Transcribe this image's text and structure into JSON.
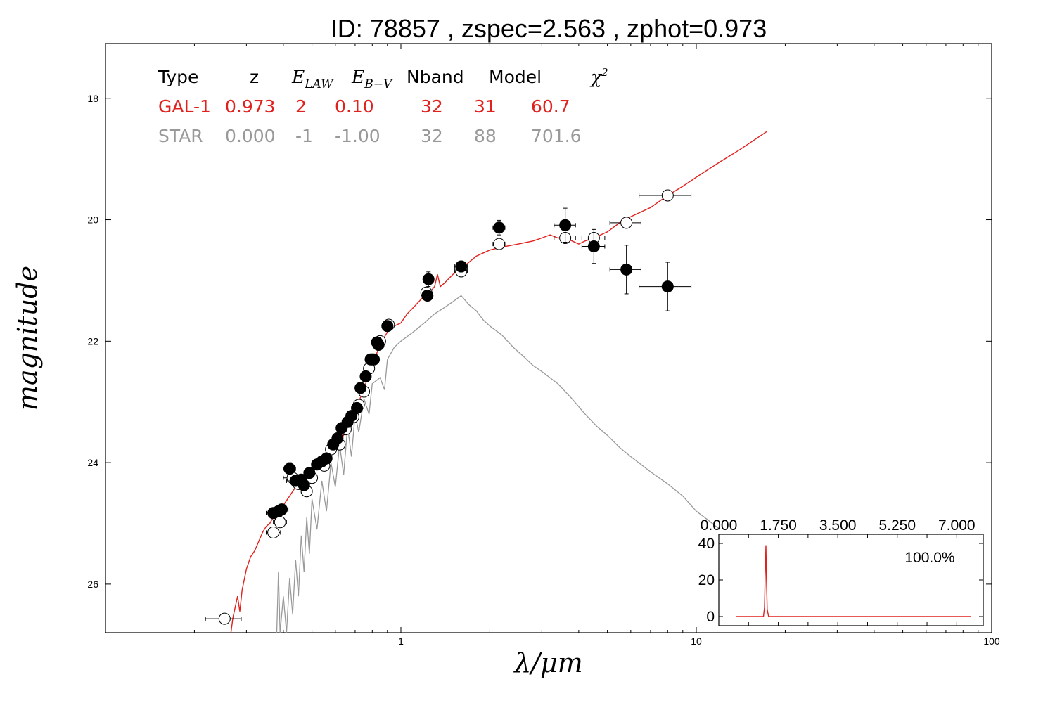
{
  "chart_data": {
    "type": "scatter",
    "title": "ID:  78857 , zspec=2.563 , zphot=0.973",
    "xlabel": "λ/μm",
    "ylabel": "magnitude",
    "xscale": "log",
    "xlim": [
      0.1,
      100
    ],
    "ylim": [
      26.8,
      17.1
    ],
    "x_ticks": [
      {
        "v": 1,
        "label": "1"
      },
      {
        "v": 10,
        "label": "10"
      },
      {
        "v": 100,
        "label": "100"
      }
    ],
    "y_ticks": [
      {
        "v": 18,
        "label": "18"
      },
      {
        "v": 20,
        "label": "20"
      },
      {
        "v": 22,
        "label": "22"
      },
      {
        "v": 24,
        "label": "24"
      },
      {
        "v": 26,
        "label": "26"
      }
    ],
    "grid": false,
    "legend_table": {
      "headers": [
        "Type",
        "z",
        "E_LAW",
        "E_B−V",
        "Nband",
        "Model",
        "χ²"
      ],
      "rows": [
        {
          "cells": [
            "GAL-1",
            "0.973",
            "2",
            "0.10",
            "32",
            "31",
            "60.7"
          ],
          "color": "#e0211d"
        },
        {
          "cells": [
            "STAR",
            "0.000",
            "-1",
            "-1.00",
            "32",
            "88",
            "701.6"
          ],
          "color": "#999999"
        }
      ]
    },
    "series": [
      {
        "name": "GAL-1",
        "kind": "line",
        "color": "#e0211d",
        "points": [
          [
            0.265,
            26.85
          ],
          [
            0.27,
            26.55
          ],
          [
            0.28,
            26.2
          ],
          [
            0.285,
            26.45
          ],
          [
            0.29,
            26.1
          ],
          [
            0.3,
            25.75
          ],
          [
            0.31,
            25.55
          ],
          [
            0.32,
            25.45
          ],
          [
            0.33,
            25.3
          ],
          [
            0.34,
            25.15
          ],
          [
            0.35,
            25.05
          ],
          [
            0.36,
            25.0
          ],
          [
            0.37,
            24.9
          ],
          [
            0.38,
            24.85
          ],
          [
            0.39,
            24.8
          ],
          [
            0.4,
            24.7
          ],
          [
            0.42,
            24.55
          ],
          [
            0.44,
            24.4
          ],
          [
            0.46,
            24.3
          ],
          [
            0.48,
            24.2
          ],
          [
            0.5,
            24.1
          ],
          [
            0.53,
            24.0
          ],
          [
            0.56,
            23.9
          ],
          [
            0.6,
            23.75
          ],
          [
            0.64,
            23.55
          ],
          [
            0.68,
            23.3
          ],
          [
            0.72,
            23.0
          ],
          [
            0.76,
            22.7
          ],
          [
            0.8,
            22.4
          ],
          [
            0.85,
            22.05
          ],
          [
            0.9,
            21.85
          ],
          [
            0.95,
            21.75
          ],
          [
            1.0,
            21.7
          ],
          [
            1.05,
            21.55
          ],
          [
            1.1,
            21.45
          ],
          [
            1.15,
            21.35
          ],
          [
            1.2,
            21.25
          ],
          [
            1.25,
            21.2
          ],
          [
            1.3,
            21.1
          ],
          [
            1.33,
            20.9
          ],
          [
            1.36,
            21.1
          ],
          [
            1.4,
            21.05
          ],
          [
            1.5,
            20.9
          ],
          [
            1.6,
            20.8
          ],
          [
            1.7,
            20.7
          ],
          [
            1.8,
            20.6
          ],
          [
            2.0,
            20.5
          ],
          [
            2.2,
            20.45
          ],
          [
            2.5,
            20.4
          ],
          [
            2.8,
            20.35
          ],
          [
            3.0,
            20.3
          ],
          [
            3.2,
            20.25
          ],
          [
            3.4,
            20.3
          ],
          [
            3.6,
            20.3
          ],
          [
            3.8,
            20.35
          ],
          [
            4.0,
            20.4
          ],
          [
            4.2,
            20.35
          ],
          [
            4.5,
            20.3
          ],
          [
            5.0,
            20.2
          ],
          [
            5.5,
            20.05
          ],
          [
            6.0,
            19.95
          ],
          [
            7.0,
            19.8
          ],
          [
            8.0,
            19.6
          ],
          [
            9.0,
            19.45
          ],
          [
            10.0,
            19.3
          ],
          [
            12.0,
            19.05
          ],
          [
            14.0,
            18.85
          ],
          [
            17.3,
            18.55
          ]
        ]
      },
      {
        "name": "STAR",
        "kind": "line",
        "color": "#999999",
        "points": [
          [
            0.38,
            26.8
          ],
          [
            0.385,
            25.8
          ],
          [
            0.39,
            26.8
          ],
          [
            0.4,
            26.2
          ],
          [
            0.41,
            26.8
          ],
          [
            0.42,
            25.9
          ],
          [
            0.43,
            26.5
          ],
          [
            0.44,
            25.6
          ],
          [
            0.45,
            26.2
          ],
          [
            0.46,
            25.2
          ],
          [
            0.47,
            25.8
          ],
          [
            0.48,
            24.9
          ],
          [
            0.49,
            25.5
          ],
          [
            0.5,
            24.6
          ],
          [
            0.52,
            25.1
          ],
          [
            0.54,
            24.3
          ],
          [
            0.56,
            24.8
          ],
          [
            0.58,
            24.0
          ],
          [
            0.6,
            24.4
          ],
          [
            0.62,
            23.7
          ],
          [
            0.64,
            24.2
          ],
          [
            0.66,
            23.4
          ],
          [
            0.68,
            23.9
          ],
          [
            0.7,
            23.2
          ],
          [
            0.72,
            23.5
          ],
          [
            0.75,
            22.95
          ],
          [
            0.78,
            23.2
          ],
          [
            0.8,
            22.7
          ],
          [
            0.85,
            22.6
          ],
          [
            0.88,
            22.8
          ],
          [
            0.9,
            22.3
          ],
          [
            0.95,
            22.1
          ],
          [
            1.0,
            22.0
          ],
          [
            1.1,
            21.85
          ],
          [
            1.2,
            21.7
          ],
          [
            1.3,
            21.55
          ],
          [
            1.4,
            21.45
          ],
          [
            1.5,
            21.35
          ],
          [
            1.6,
            21.25
          ],
          [
            1.7,
            21.4
          ],
          [
            1.8,
            21.5
          ],
          [
            1.9,
            21.65
          ],
          [
            2.0,
            21.75
          ],
          [
            2.2,
            21.9
          ],
          [
            2.4,
            22.1
          ],
          [
            2.6,
            22.25
          ],
          [
            2.8,
            22.4
          ],
          [
            3.0,
            22.5
          ],
          [
            3.4,
            22.7
          ],
          [
            3.8,
            22.95
          ],
          [
            4.2,
            23.2
          ],
          [
            4.6,
            23.4
          ],
          [
            5.0,
            23.55
          ],
          [
            5.5,
            23.75
          ],
          [
            6.0,
            23.9
          ],
          [
            7.0,
            24.15
          ],
          [
            8.0,
            24.35
          ],
          [
            9.0,
            24.55
          ],
          [
            10.0,
            24.8
          ],
          [
            11.0,
            24.95
          ],
          [
            12.0,
            25.1
          ]
        ]
      },
      {
        "name": "observed",
        "kind": "points",
        "color": "#000000",
        "points": [
          {
            "x": 0.37,
            "y": 24.83,
            "xerr": 0.02,
            "yerr": 0.08
          },
          {
            "x": 0.385,
            "y": 24.8,
            "xerr": 0.02,
            "yerr": 0.08
          },
          {
            "x": 0.395,
            "y": 24.77,
            "xerr": 0.02,
            "yerr": 0.08
          },
          {
            "x": 0.42,
            "y": 24.1,
            "xerr": 0.02,
            "yerr": 0.1
          },
          {
            "x": 0.44,
            "y": 24.3,
            "xerr": 0.03,
            "yerr": 0.08
          },
          {
            "x": 0.46,
            "y": 24.28,
            "xerr": 0.02,
            "yerr": 0.08
          },
          {
            "x": 0.47,
            "y": 24.37,
            "xerr": 0.02,
            "yerr": 0.08
          },
          {
            "x": 0.49,
            "y": 24.17,
            "xerr": 0.02,
            "yerr": 0.07
          },
          {
            "x": 0.52,
            "y": 24.03,
            "xerr": 0.02,
            "yerr": 0.07
          },
          {
            "x": 0.54,
            "y": 23.98,
            "xerr": 0.02,
            "yerr": 0.07
          },
          {
            "x": 0.56,
            "y": 23.93,
            "xerr": 0.02,
            "yerr": 0.07
          },
          {
            "x": 0.59,
            "y": 23.7,
            "xerr": 0.02,
            "yerr": 0.06
          },
          {
            "x": 0.61,
            "y": 23.6,
            "xerr": 0.02,
            "yerr": 0.06
          },
          {
            "x": 0.63,
            "y": 23.43,
            "xerr": 0.02,
            "yerr": 0.06
          },
          {
            "x": 0.66,
            "y": 23.33,
            "xerr": 0.02,
            "yerr": 0.06
          },
          {
            "x": 0.68,
            "y": 23.23,
            "xerr": 0.02,
            "yerr": 0.06
          },
          {
            "x": 0.71,
            "y": 23.1,
            "xerr": 0.02,
            "yerr": 0.06
          },
          {
            "x": 0.73,
            "y": 22.77,
            "xerr": 0.02,
            "yerr": 0.06
          },
          {
            "x": 0.76,
            "y": 22.58,
            "xerr": 0.02,
            "yerr": 0.06
          },
          {
            "x": 0.79,
            "y": 22.3,
            "xerr": 0.02,
            "yerr": 0.06
          },
          {
            "x": 0.81,
            "y": 22.3,
            "xerr": 0.02,
            "yerr": 0.06
          },
          {
            "x": 0.83,
            "y": 22.02,
            "xerr": 0.02,
            "yerr": 0.06
          },
          {
            "x": 0.84,
            "y": 22.06,
            "xerr": 0.02,
            "yerr": 0.06
          },
          {
            "x": 0.9,
            "y": 21.75,
            "xerr": 0.03,
            "yerr": 0.06
          },
          {
            "x": 1.23,
            "y": 21.25,
            "xerr": 0.04,
            "yerr": 0.08
          },
          {
            "x": 1.24,
            "y": 20.98,
            "xerr": 0.04,
            "yerr": 0.12
          },
          {
            "x": 1.6,
            "y": 20.77,
            "xerr": 0.08,
            "yerr": 0.07
          },
          {
            "x": 2.15,
            "y": 20.13,
            "xerr": 0.1,
            "yerr": 0.12
          },
          {
            "x": 3.6,
            "y": 20.09,
            "xerr": 0.3,
            "yerr": 0.28
          },
          {
            "x": 4.5,
            "y": 20.44,
            "xerr": 0.4,
            "yerr": 0.28
          },
          {
            "x": 5.8,
            "y": 20.82,
            "xerr": 0.7,
            "yerr": 0.4
          },
          {
            "x": 8.0,
            "y": 21.1,
            "xerr": 1.6,
            "yerr": 0.4
          }
        ]
      },
      {
        "name": "model",
        "kind": "points",
        "color": "#ffffff",
        "points": [
          {
            "x": 0.37,
            "y": 25.15,
            "xerr": 0.02,
            "yerr": 0.05
          },
          {
            "x": 0.39,
            "y": 24.98,
            "xerr": 0.02,
            "yerr": 0.05
          },
          {
            "x": 0.43,
            "y": 24.25,
            "xerr": 0.03,
            "yerr": 0.05
          },
          {
            "x": 0.45,
            "y": 24.35,
            "xerr": 0.02,
            "yerr": 0.05
          },
          {
            "x": 0.48,
            "y": 24.47,
            "xerr": 0.02,
            "yerr": 0.05
          },
          {
            "x": 0.5,
            "y": 24.25,
            "xerr": 0.02,
            "yerr": 0.05
          },
          {
            "x": 0.55,
            "y": 24.05,
            "xerr": 0.02,
            "yerr": 0.05
          },
          {
            "x": 0.58,
            "y": 23.78,
            "xerr": 0.02,
            "yerr": 0.05
          },
          {
            "x": 0.62,
            "y": 23.7,
            "xerr": 0.02,
            "yerr": 0.05
          },
          {
            "x": 0.65,
            "y": 23.45,
            "xerr": 0.02,
            "yerr": 0.05
          },
          {
            "x": 0.69,
            "y": 23.25,
            "xerr": 0.02,
            "yerr": 0.05
          },
          {
            "x": 0.72,
            "y": 23.05,
            "xerr": 0.02,
            "yerr": 0.05
          },
          {
            "x": 0.75,
            "y": 22.83,
            "xerr": 0.02,
            "yerr": 0.05
          },
          {
            "x": 0.78,
            "y": 22.45,
            "xerr": 0.02,
            "yerr": 0.05
          },
          {
            "x": 0.8,
            "y": 22.3,
            "xerr": 0.02,
            "yerr": 0.05
          },
          {
            "x": 0.85,
            "y": 22.0,
            "xerr": 0.02,
            "yerr": 0.05
          },
          {
            "x": 0.91,
            "y": 21.73,
            "xerr": 0.03,
            "yerr": 0.05
          },
          {
            "x": 1.22,
            "y": 21.2,
            "xerr": 0.04,
            "yerr": 0.05
          },
          {
            "x": 1.6,
            "y": 20.85,
            "xerr": 0.08,
            "yerr": 0.05
          },
          {
            "x": 2.15,
            "y": 20.4,
            "xerr": 0.1,
            "yerr": 0.05
          },
          {
            "x": 3.6,
            "y": 20.3,
            "xerr": 0.3,
            "yerr": 0.05
          },
          {
            "x": 4.5,
            "y": 20.3,
            "xerr": 0.4,
            "yerr": 0.05
          },
          {
            "x": 5.8,
            "y": 20.05,
            "xerr": 0.7,
            "yerr": 0.05
          },
          {
            "x": 8.0,
            "y": 19.6,
            "xerr": 1.6,
            "yerr": 0.05
          },
          {
            "x": 0.253,
            "y": 26.57,
            "xerr": 0.035,
            "yerr": 0.05
          }
        ]
      }
    ],
    "inset": {
      "type": "line",
      "xlim": [
        0,
        7.2
      ],
      "ylim": [
        -5,
        45
      ],
      "x_ticks": [
        {
          "v": 0,
          "label": "0.000"
        },
        {
          "v": 1.75,
          "label": "1.750"
        },
        {
          "v": 3.5,
          "label": "3.500"
        },
        {
          "v": 5.25,
          "label": "5.250"
        },
        {
          "v": 7,
          "label": "7.000"
        }
      ],
      "y_ticks": [
        {
          "v": 0,
          "label": "0"
        },
        {
          "v": 20,
          "label": "20"
        },
        {
          "v": 40,
          "label": "40"
        }
      ],
      "annotation": "100.0%",
      "color": "#e0211d",
      "points": [
        [
          0.1,
          0.0
        ],
        [
          0.9,
          0.0
        ],
        [
          0.93,
          5.0
        ],
        [
          0.95,
          22.0
        ],
        [
          0.973,
          39.0
        ],
        [
          0.99,
          20.0
        ],
        [
          1.01,
          4.0
        ],
        [
          1.05,
          0.0
        ],
        [
          7.0,
          0.0
        ]
      ]
    }
  }
}
